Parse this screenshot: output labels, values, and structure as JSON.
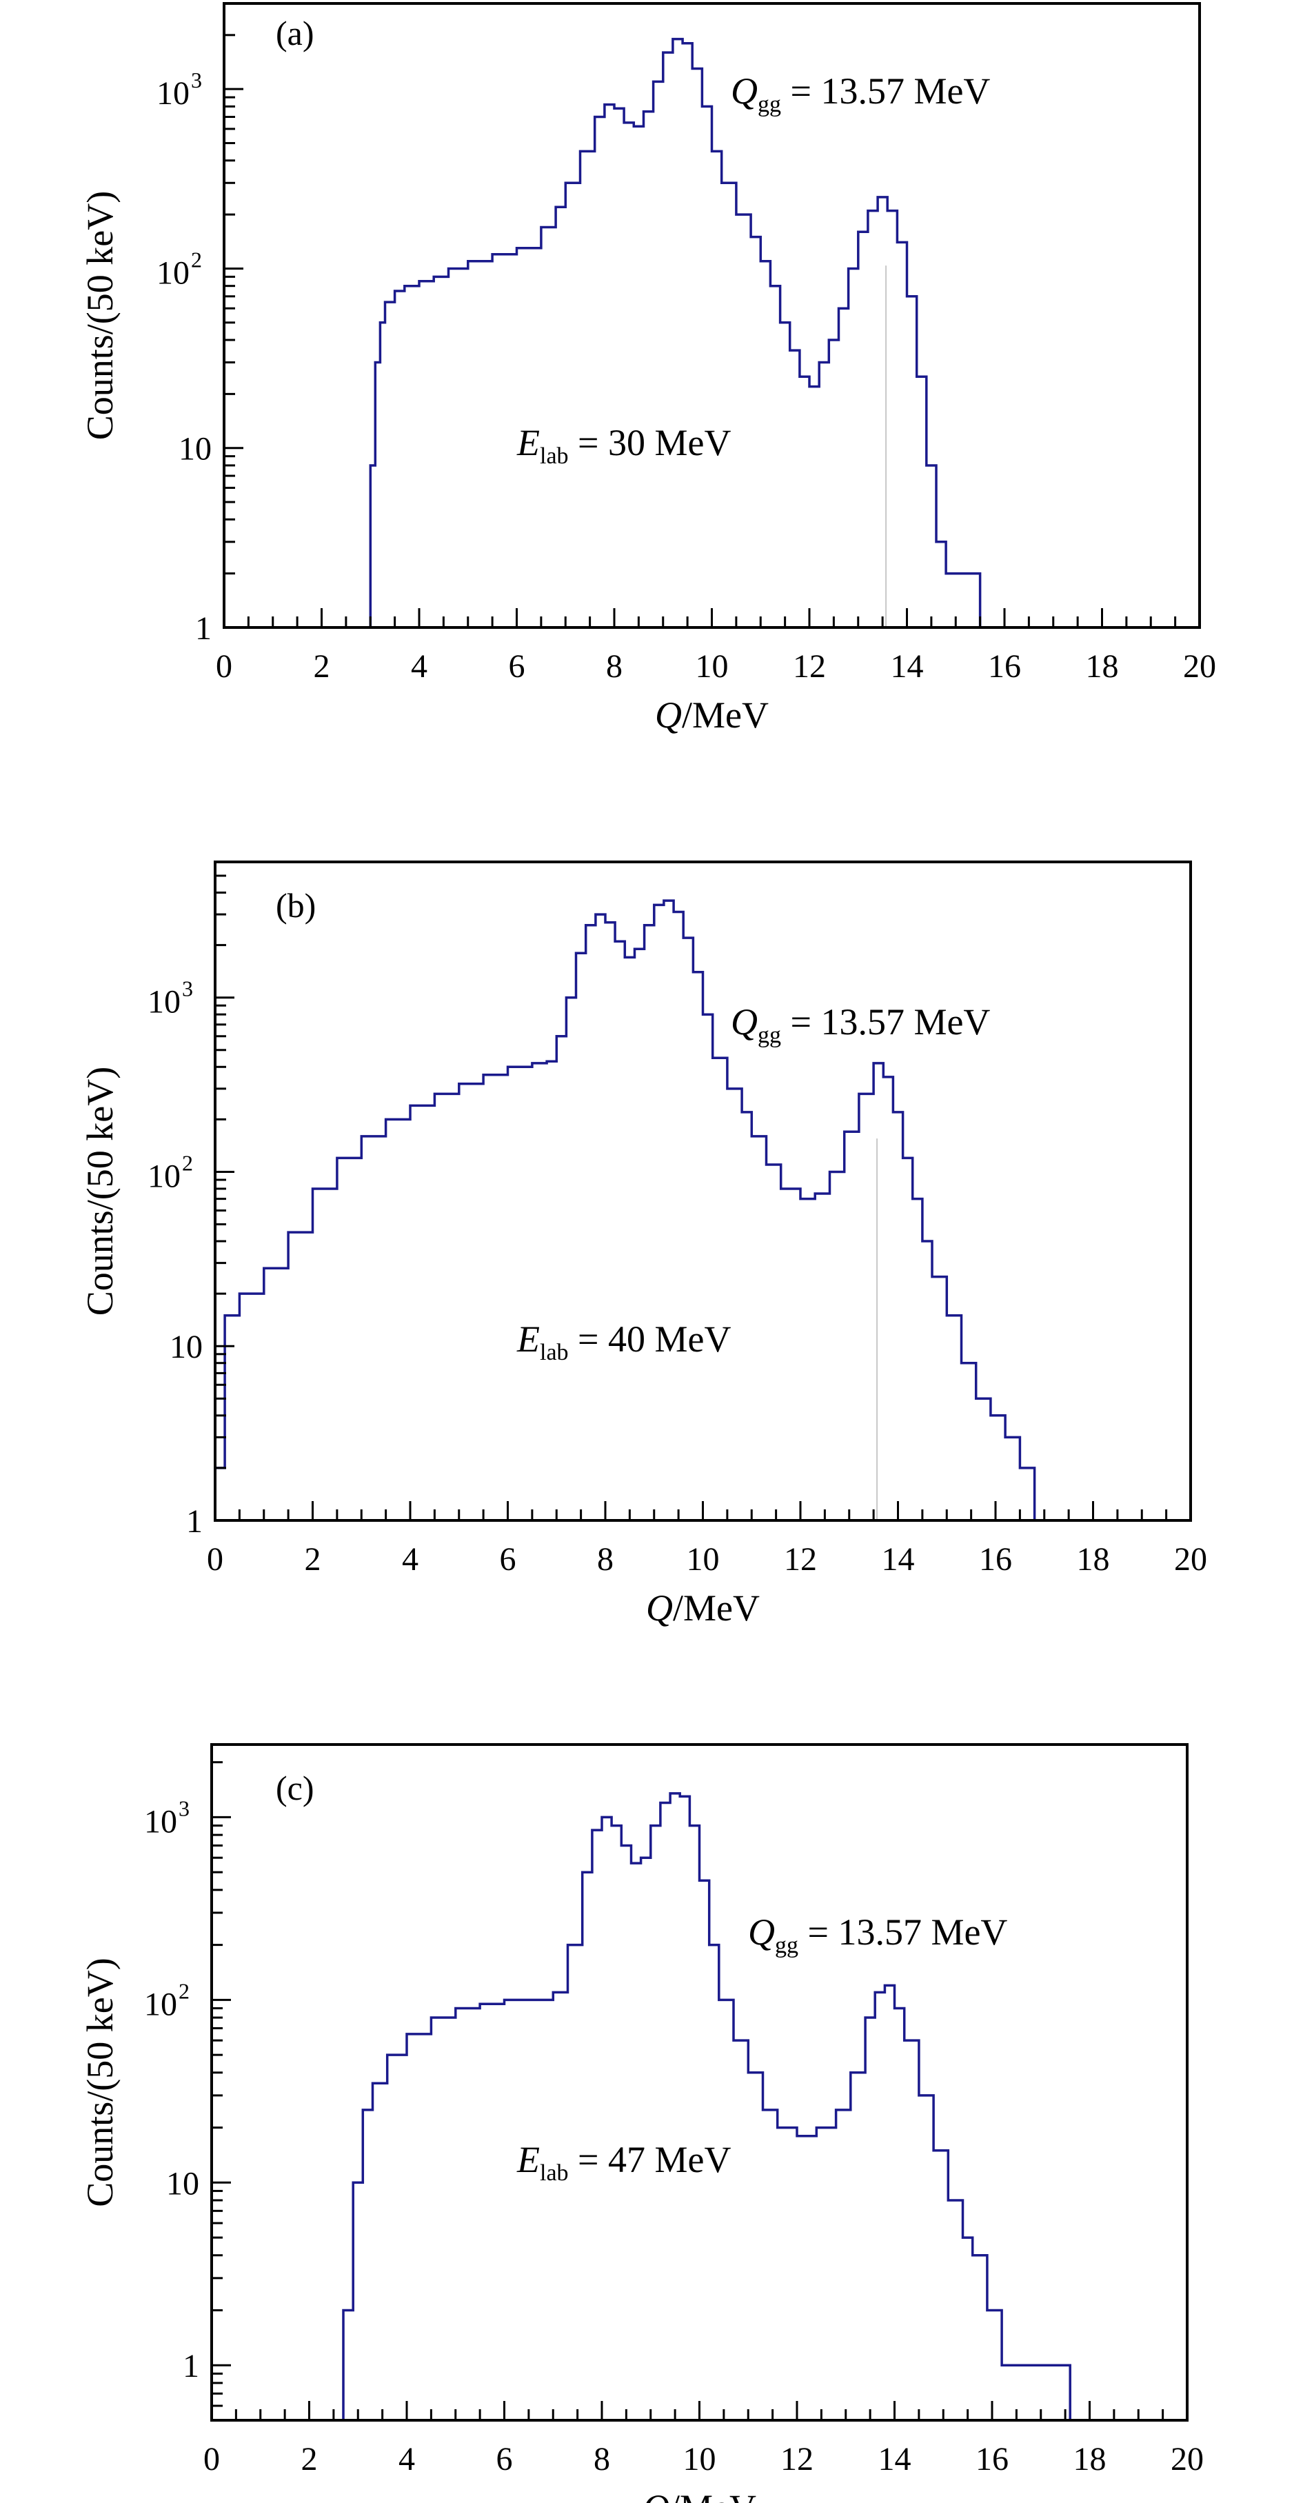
{
  "chart_data": [
    {
      "type": "line",
      "style": "step-histogram",
      "panel_label": "(a)",
      "xlabel_italic": "Q",
      "xlabel_rest": "/MeV",
      "ylabel": "Counts/(50 keV)",
      "xlim": [
        0,
        20
      ],
      "ylim": [
        1,
        3000
      ],
      "yscale": "log",
      "x_ticks": [
        "0",
        "2",
        "4",
        "6",
        "8",
        "10",
        "12",
        "14",
        "16",
        "18",
        "20"
      ],
      "y_ticks": [
        {
          "value": 1,
          "label": "1"
        },
        {
          "value": 10,
          "label": "10"
        },
        {
          "value": 100,
          "base": "10",
          "exp": "2"
        },
        {
          "value": 1000,
          "base": "10",
          "exp": "3"
        }
      ],
      "annotations": {
        "qgg": {
          "var": "Q",
          "sub": "gg",
          "text": " = 13.57 MeV"
        },
        "elab": {
          "var": "E",
          "sub": "lab",
          "text": " = 30 MeV"
        }
      },
      "marker_x": 13.57,
      "color": "#1a1a8c",
      "series": [
        {
          "x": [
            2.9,
            3.0,
            3.1,
            3.2,
            3.3,
            3.5,
            3.7,
            4.0,
            4.3,
            4.6,
            5.0,
            5.5,
            6.0,
            6.5,
            6.8,
            7.0,
            7.3,
            7.6,
            7.8,
            8.0,
            8.2,
            8.4,
            8.6,
            8.8,
            9.0,
            9.2,
            9.4,
            9.6,
            9.8,
            10.0,
            10.2,
            10.5,
            10.8,
            11.0,
            11.2,
            11.4,
            11.6,
            11.8,
            12.0,
            12.2,
            12.4,
            12.6,
            12.8,
            13.0,
            13.2,
            13.4,
            13.6,
            13.8,
            14.0,
            14.2,
            14.4,
            14.6,
            14.8,
            15.0,
            15.2,
            15.4,
            15.5
          ],
          "y": [
            1,
            8,
            30,
            50,
            65,
            75,
            80,
            85,
            90,
            100,
            110,
            120,
            130,
            170,
            220,
            300,
            450,
            700,
            820,
            780,
            650,
            620,
            750,
            1100,
            1600,
            1900,
            1800,
            1300,
            800,
            450,
            300,
            200,
            150,
            110,
            80,
            50,
            35,
            25,
            22,
            30,
            40,
            60,
            100,
            160,
            210,
            250,
            210,
            140,
            70,
            25,
            8,
            3,
            2,
            2,
            2,
            2,
            1
          ]
        }
      ]
    },
    {
      "type": "line",
      "style": "step-histogram",
      "panel_label": "(b)",
      "xlabel_italic": "Q",
      "xlabel_rest": "/MeV",
      "ylabel": "Counts/(50 keV)",
      "xlim": [
        0,
        20
      ],
      "ylim": [
        1,
        6000
      ],
      "yscale": "log",
      "x_ticks": [
        "0",
        "2",
        "4",
        "6",
        "8",
        "10",
        "12",
        "14",
        "16",
        "18",
        "20"
      ],
      "y_ticks": [
        {
          "value": 1,
          "label": "1"
        },
        {
          "value": 10,
          "label": "10"
        },
        {
          "value": 100,
          "base": "10",
          "exp": "2"
        },
        {
          "value": 1000,
          "base": "10",
          "exp": "3"
        }
      ],
      "annotations": {
        "qgg": {
          "var": "Q",
          "sub": "gg",
          "text": " = 13.57 MeV"
        },
        "elab": {
          "var": "E",
          "sub": "lab",
          "text": " = 40 MeV"
        }
      },
      "marker_x": 13.57,
      "color": "#1a1a8c",
      "series": [
        {
          "x": [
            0.0,
            0.2,
            0.5,
            1.0,
            1.5,
            2.0,
            2.5,
            3.0,
            3.5,
            4.0,
            4.5,
            5.0,
            5.5,
            6.0,
            6.5,
            6.8,
            7.0,
            7.2,
            7.4,
            7.6,
            7.8,
            8.0,
            8.2,
            8.4,
            8.6,
            8.8,
            9.0,
            9.2,
            9.4,
            9.6,
            9.8,
            10.0,
            10.2,
            10.5,
            10.8,
            11.0,
            11.3,
            11.6,
            12.0,
            12.3,
            12.6,
            12.9,
            13.2,
            13.5,
            13.7,
            13.9,
            14.1,
            14.3,
            14.5,
            14.7,
            15.0,
            15.3,
            15.6,
            15.9,
            16.2,
            16.5,
            16.8
          ],
          "y": [
            2,
            15,
            20,
            28,
            45,
            80,
            120,
            160,
            200,
            240,
            280,
            320,
            360,
            400,
            420,
            430,
            600,
            1000,
            1800,
            2600,
            3000,
            2700,
            2100,
            1700,
            1900,
            2600,
            3400,
            3600,
            3100,
            2200,
            1400,
            800,
            450,
            300,
            220,
            160,
            110,
            80,
            70,
            75,
            100,
            170,
            280,
            420,
            350,
            220,
            120,
            70,
            40,
            25,
            15,
            8,
            5,
            4,
            3,
            2,
            1
          ]
        }
      ]
    },
    {
      "type": "line",
      "style": "step-histogram",
      "panel_label": "(c)",
      "xlabel_italic": "Q",
      "xlabel_rest": "/MeV",
      "ylabel": "Counts/(50 keV)",
      "xlim": [
        0,
        20
      ],
      "ylim": [
        0.5,
        2500
      ],
      "yscale": "log",
      "x_ticks": [
        "0",
        "2",
        "4",
        "6",
        "8",
        "10",
        "12",
        "14",
        "16",
        "18",
        "20"
      ],
      "y_ticks": [
        {
          "value": 1,
          "label": "1"
        },
        {
          "value": 10,
          "label": "10"
        },
        {
          "value": 100,
          "base": "10",
          "exp": "2"
        },
        {
          "value": 1000,
          "base": "10",
          "exp": "3"
        }
      ],
      "annotations": {
        "qgg": {
          "var": "Q",
          "sub": "gg",
          "text": " = 13.57 MeV"
        },
        "elab": {
          "var": "E",
          "sub": "lab",
          "text": " = 47 MeV"
        }
      },
      "color": "#1a1a8c",
      "series": [
        {
          "x": [
            2.5,
            2.7,
            2.9,
            3.1,
            3.3,
            3.6,
            4.0,
            4.5,
            5.0,
            5.5,
            6.0,
            6.5,
            7.0,
            7.3,
            7.6,
            7.8,
            8.0,
            8.2,
            8.4,
            8.6,
            8.8,
            9.0,
            9.2,
            9.4,
            9.6,
            9.8,
            10.0,
            10.2,
            10.4,
            10.7,
            11.0,
            11.3,
            11.6,
            12.0,
            12.4,
            12.8,
            13.1,
            13.4,
            13.6,
            13.8,
            14.0,
            14.2,
            14.5,
            14.8,
            15.1,
            15.4,
            15.6,
            15.9,
            16.2,
            16.5,
            16.8,
            17.2,
            17.6
          ],
          "y": [
            0.5,
            2,
            10,
            25,
            35,
            50,
            65,
            80,
            90,
            95,
            100,
            100,
            110,
            200,
            500,
            850,
            1000,
            900,
            700,
            560,
            600,
            900,
            1200,
            1350,
            1300,
            900,
            450,
            200,
            100,
            60,
            40,
            25,
            20,
            18,
            20,
            25,
            40,
            80,
            110,
            120,
            90,
            60,
            30,
            15,
            8,
            5,
            4,
            2,
            1,
            1,
            1,
            1,
            0.5
          ]
        }
      ]
    }
  ]
}
